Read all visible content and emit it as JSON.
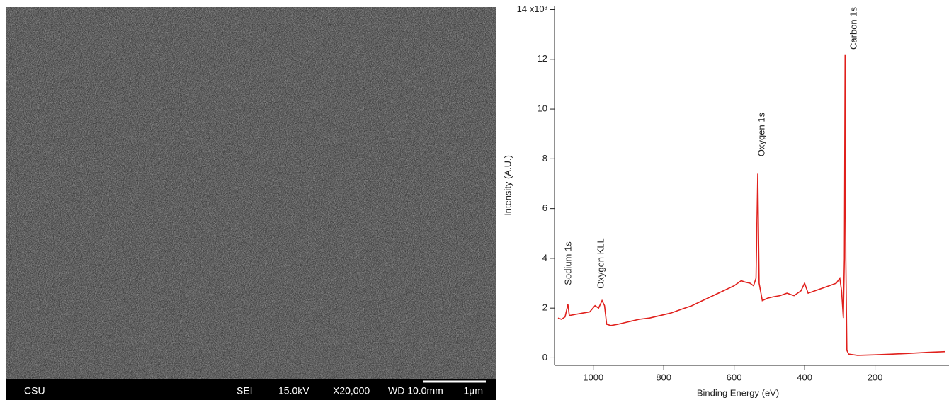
{
  "sem_image": {
    "lab": "CSU",
    "mode": "SEI",
    "voltage": "15.0kV",
    "magnification": "X20,000",
    "working_distance": "WD 10.0mm",
    "scale": "1µm"
  },
  "chart_data": {
    "type": "line",
    "xlabel": "Binding Energy (eV)",
    "ylabel": "Intensity (A.U.)",
    "color": "#e0201c",
    "xlim": [
      1110,
      -10
    ],
    "xticks": [
      1000,
      800,
      600,
      400,
      200
    ],
    "ylim": [
      -0.3,
      14.1
    ],
    "yticks": [
      0,
      2,
      4,
      6,
      8,
      10,
      12,
      {
        "value": 14,
        "label": "14 x10³"
      }
    ],
    "annotations": [
      "Sodium 1s",
      "Oxygen KLL",
      "Oxygen 1s",
      "Carbon 1s"
    ],
    "x": [
      1100,
      1090,
      1080,
      1072,
      1068,
      1050,
      1030,
      1010,
      995,
      985,
      975,
      968,
      962,
      950,
      930,
      900,
      870,
      840,
      810,
      780,
      750,
      720,
      690,
      660,
      630,
      600,
      580,
      570,
      555,
      545,
      538,
      533,
      529,
      520,
      505,
      490,
      470,
      450,
      430,
      410,
      400,
      390,
      370,
      350,
      330,
      310,
      300,
      295,
      290,
      287,
      285,
      283,
      280,
      275,
      250,
      200,
      150,
      100,
      50,
      0
    ],
    "values": [
      1.6,
      1.55,
      1.65,
      2.15,
      1.7,
      1.75,
      1.8,
      1.85,
      2.1,
      2.0,
      2.3,
      2.1,
      1.35,
      1.3,
      1.35,
      1.45,
      1.55,
      1.6,
      1.7,
      1.8,
      1.95,
      2.1,
      2.3,
      2.5,
      2.7,
      2.9,
      3.1,
      3.05,
      3.0,
      2.9,
      3.2,
      7.4,
      3.0,
      2.3,
      2.4,
      2.45,
      2.5,
      2.6,
      2.5,
      2.7,
      3.0,
      2.6,
      2.7,
      2.8,
      2.9,
      3.0,
      3.2,
      2.7,
      1.6,
      4.0,
      12.2,
      4.0,
      0.3,
      0.15,
      0.1,
      0.12,
      0.15,
      0.18,
      0.22,
      0.25
    ]
  }
}
